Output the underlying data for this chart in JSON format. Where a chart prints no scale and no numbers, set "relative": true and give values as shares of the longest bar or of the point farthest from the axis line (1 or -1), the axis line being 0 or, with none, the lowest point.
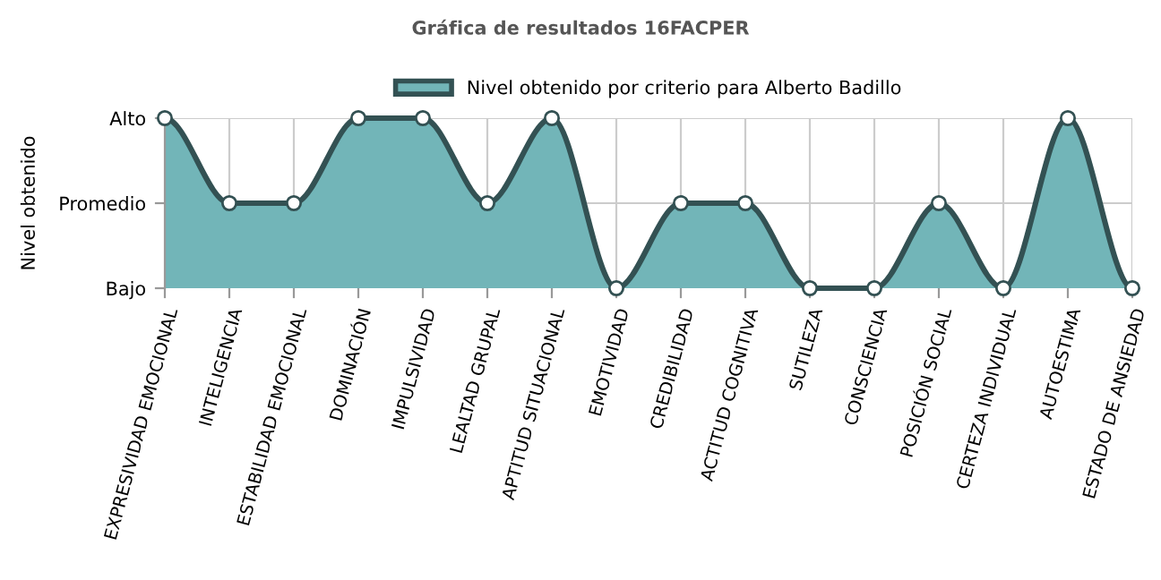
{
  "chart_data": {
    "type": "area",
    "title": "Gráfica de resultados 16FACPER",
    "ylabel": "Nivel obtenido",
    "categories": [
      "EXPRESIVIDAD EMOCIONAL",
      "INTELIGENCIA",
      "ESTABILIDAD EMOCIONAL",
      "DOMINACIÓN",
      "IMPULSIVIDAD",
      "LEALTAD GRUPAL",
      "APTITUD SITUACIONAL",
      "EMOTIVIDAD",
      "CREDIBILIDAD",
      "ACTITUD COGNITIVA",
      "SUTILEZA",
      "CONSCIENCIA",
      "POSICIÓN SOCIAL",
      "CERTEZA INDIVIDUAL",
      "AUTOESTIMA",
      "ESTADO DE ANSIEDAD"
    ],
    "series": [
      {
        "name": "Nivel obtenido por criterio para Alberto Badillo",
        "color": "#72b5b8",
        "values": [
          1,
          0.5,
          0.5,
          1,
          1,
          0.5,
          1,
          0,
          0.5,
          0.5,
          0,
          0,
          0.5,
          0,
          1,
          0
        ]
      }
    ],
    "relative": true,
    "annotations": [
      "Bajo",
      "Promedio",
      "Alto"
    ],
    "grid": true,
    "legend": "top",
    "marker": "circle",
    "line_style": "solid"
  }
}
